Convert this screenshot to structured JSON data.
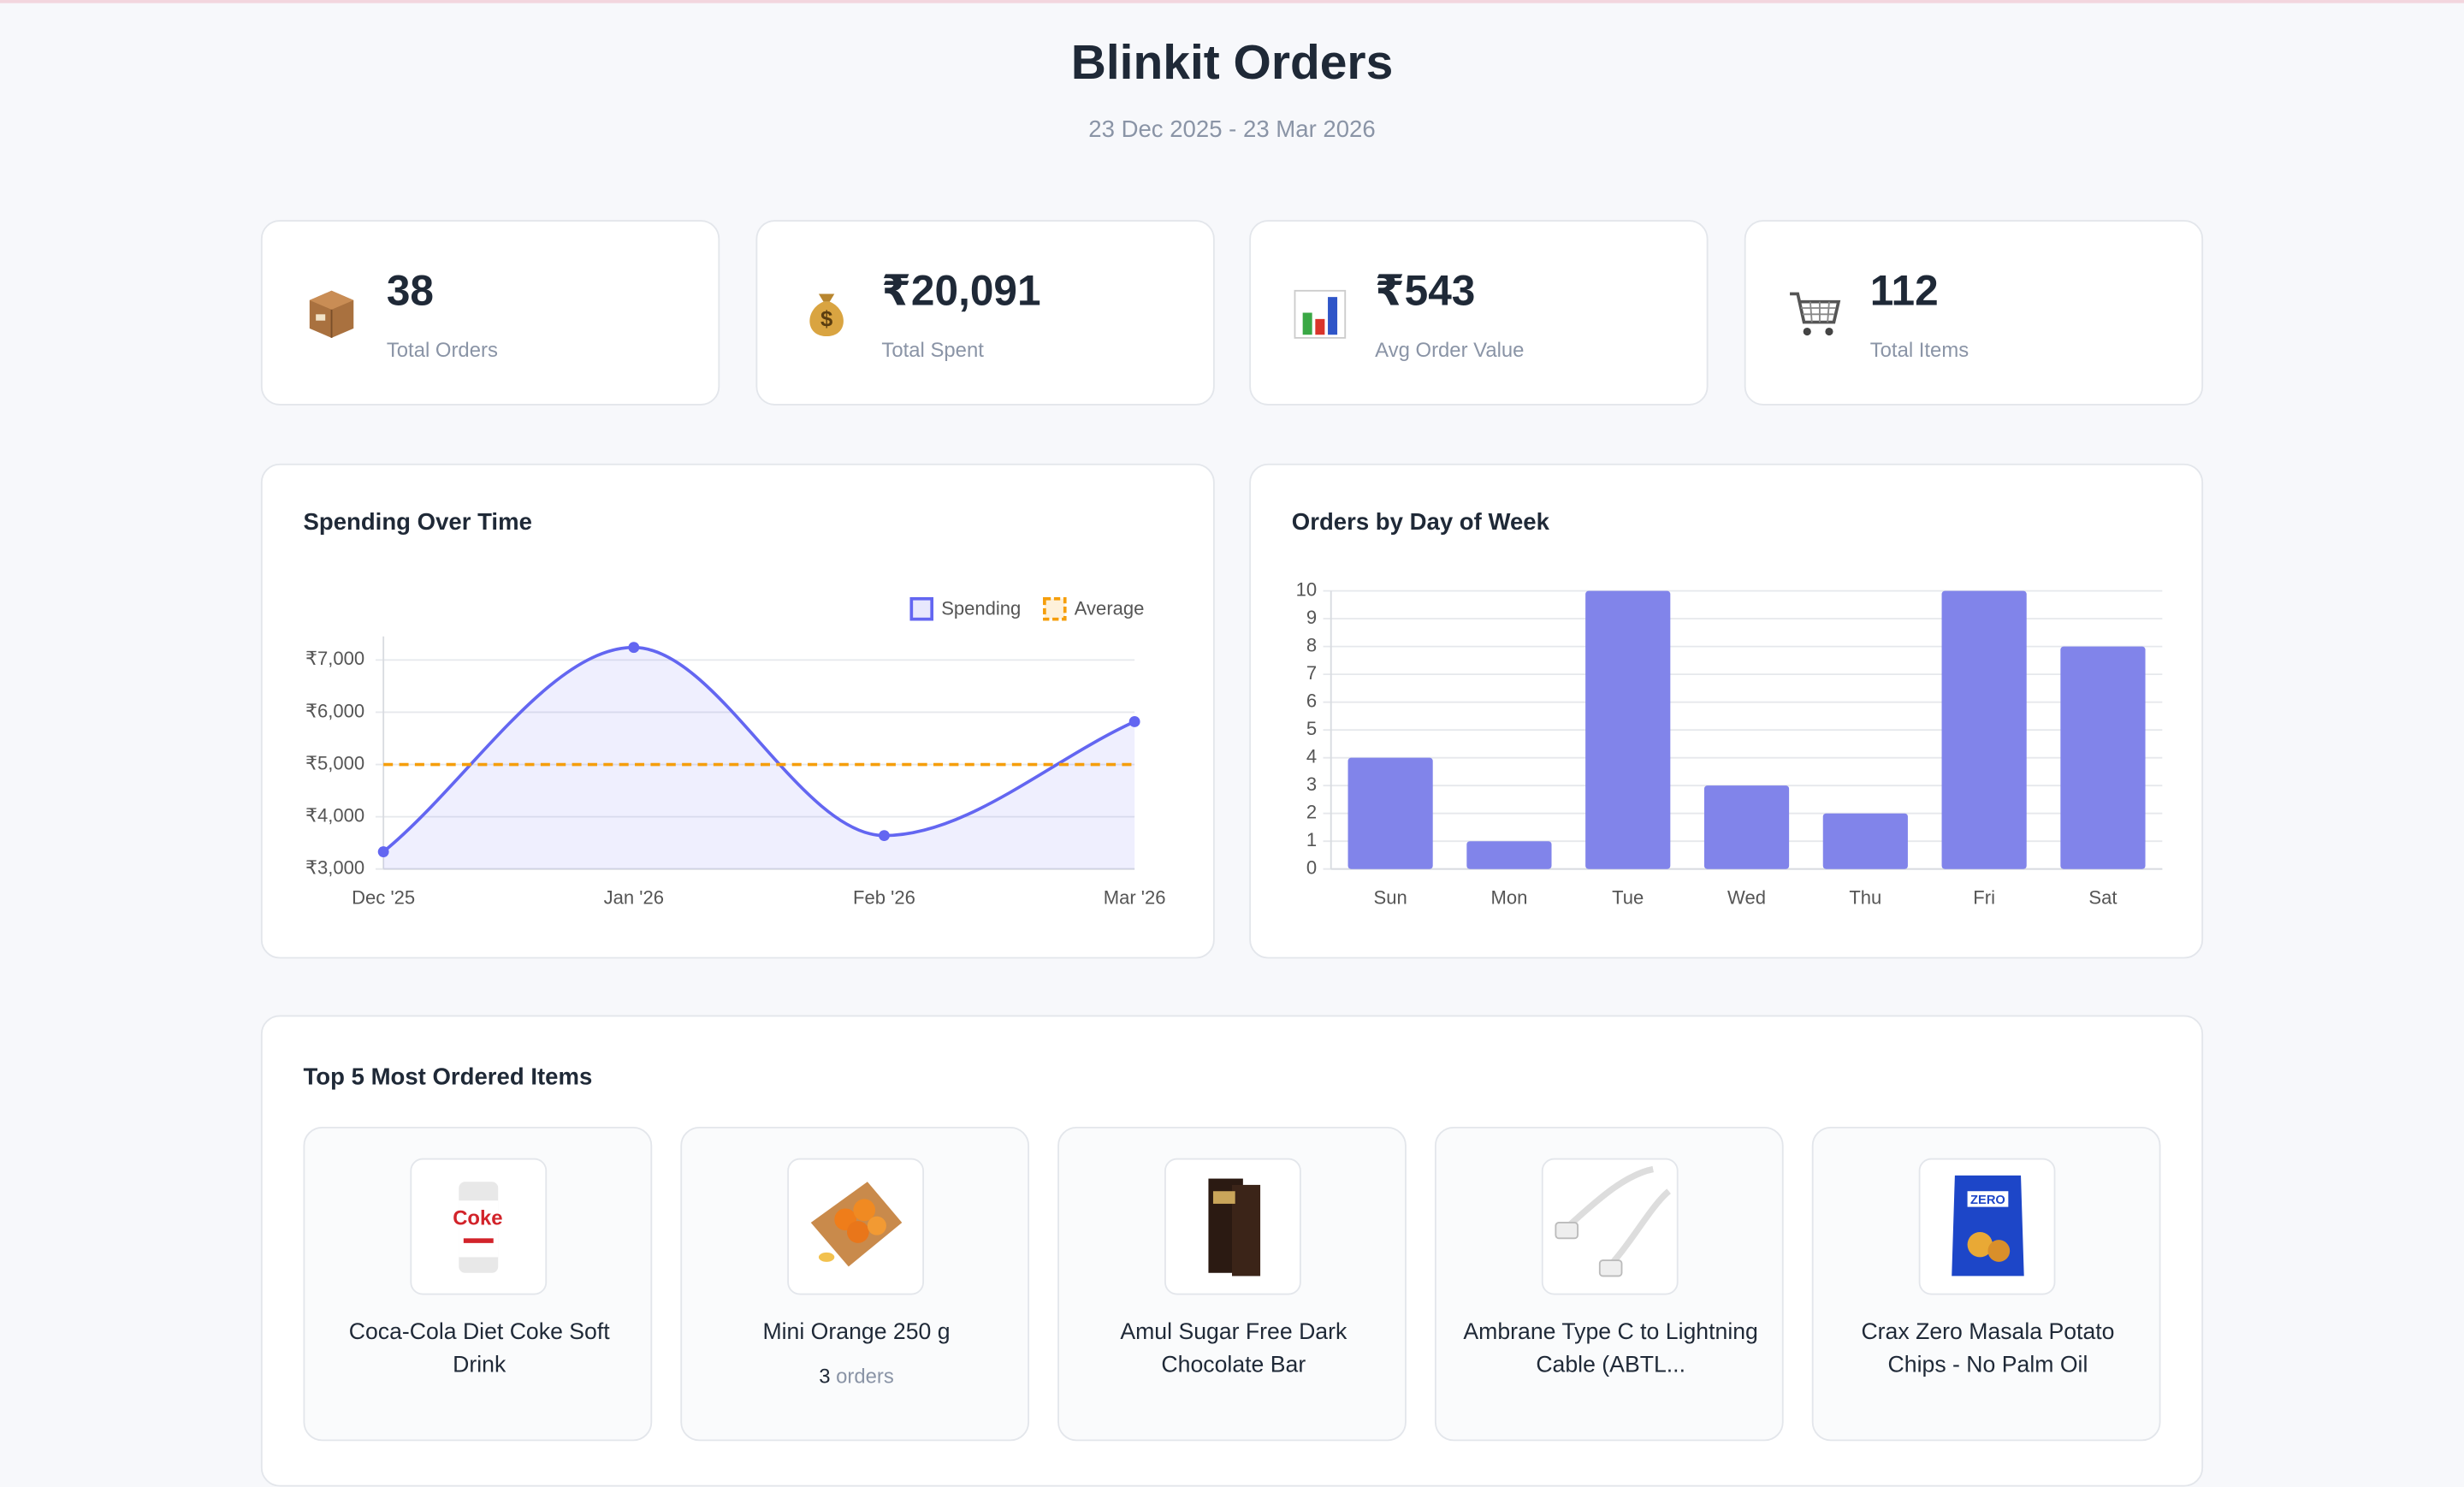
{
  "header": {
    "title": "Blinkit Orders",
    "subtitle": "23 Dec 2025 - 23 Mar 2026"
  },
  "stats": [
    {
      "value": "38",
      "label": "Total Orders"
    },
    {
      "value": "₹20,091",
      "label": "Total Spent"
    },
    {
      "value": "₹543",
      "label": "Avg Order Value"
    },
    {
      "value": "112",
      "label": "Total Items"
    }
  ],
  "chart_data": [
    {
      "type": "line",
      "title": "Spending Over Time",
      "categories": [
        "Dec '25",
        "Jan '26",
        "Feb '26",
        "Mar '26"
      ],
      "series": [
        {
          "name": "Spending",
          "color": "#6366f1",
          "values": [
            3330,
            7240,
            3640,
            5820
          ],
          "fill": true
        },
        {
          "name": "Average",
          "color": "#f59e0b",
          "values": [
            5000,
            5000,
            5000,
            5000
          ],
          "style": "dashed"
        }
      ],
      "ylim": [
        3000,
        7450
      ],
      "yticks": [
        {
          "value": 3000,
          "label": "₹3,000"
        },
        {
          "value": 4000,
          "label": "₹4,000"
        },
        {
          "value": 5000,
          "label": "₹5,000"
        },
        {
          "value": 6000,
          "label": "₹6,000"
        },
        {
          "value": 7000,
          "label": "₹7,000"
        }
      ],
      "grid": true,
      "legend": "top-right"
    },
    {
      "type": "bar",
      "title": "Orders by Day of Week",
      "categories": [
        "Sun",
        "Mon",
        "Tue",
        "Wed",
        "Thu",
        "Fri",
        "Sat"
      ],
      "values": [
        4,
        1,
        10,
        3,
        2,
        10,
        8
      ],
      "color": "#8184ea",
      "ylim": [
        0,
        10
      ],
      "yticks": [
        0,
        1,
        2,
        3,
        4,
        5,
        6,
        7,
        8,
        9,
        10
      ],
      "grid": true
    }
  ],
  "top_items": {
    "title": "Top 5 Most Ordered Items",
    "items": [
      {
        "name": "Coca-Cola Diet Coke Soft Drink"
      },
      {
        "name": "Mini Orange 250 g",
        "orders": 3,
        "orders_label": "orders"
      },
      {
        "name": "Amul Sugar Free Dark Chocolate Bar"
      },
      {
        "name": "Ambrane Type C to Lightning Cable (ABTL..."
      },
      {
        "name": "Crax Zero Masala Potato Chips - No Palm Oil"
      }
    ]
  }
}
